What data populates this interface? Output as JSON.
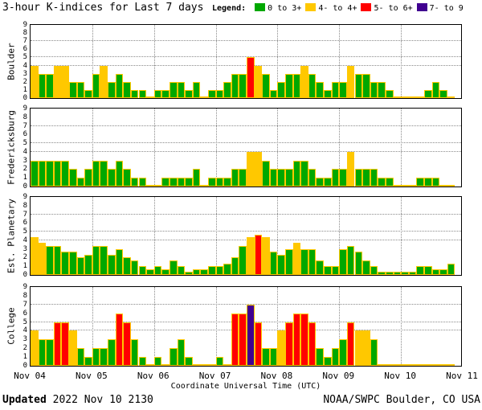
{
  "title": "3-hour K-indices for Last 7 days",
  "legend": {
    "label": "Legend:",
    "items": [
      {
        "label": "0 to 3+",
        "color": "#00A800"
      },
      {
        "label": "4- to 4+",
        "color": "#FFC800"
      },
      {
        "label": "5- to 6+",
        "color": "#FF0000"
      },
      {
        "label": "7- to 9",
        "color": "#400090"
      }
    ]
  },
  "footer": {
    "updated_label": "Updated",
    "updated_value": " 2022 Nov 10 2130",
    "credit": "NOAA/SWPC Boulder, CO USA"
  },
  "chart_data": {
    "type": "bar",
    "title": "3-hour K-indices for Last 7 days",
    "xlabel": "Coordinate Universal Time (UTC)",
    "x_tick_labels": [
      "Nov 04",
      "Nov 05",
      "Nov 06",
      "Nov 07",
      "Nov 08",
      "Nov 09",
      "Nov 10",
      "Nov 11"
    ],
    "ylim": [
      0,
      9
    ],
    "y_tick_labels": [
      "9",
      "8",
      "7",
      "6",
      "5",
      "4",
      "3",
      "2",
      "1",
      "0"
    ],
    "threshold_gridlines": [
      4,
      5,
      7
    ],
    "bars_per_day": 8,
    "days": 7,
    "legend_rule": {
      "green": "0 to 3+",
      "yellow": "4- to 4+",
      "red": "5- to 6+",
      "purple": "7- to 9"
    },
    "colors": {
      "green": "#00A800",
      "yellow": "#FFC800",
      "red": "#FF0000",
      "purple": "#400090",
      "bar_outline": "#FFC800"
    },
    "series": [
      {
        "name": "Boulder",
        "values": [
          4,
          3,
          3,
          4,
          4,
          2,
          2,
          1,
          3,
          4,
          2,
          3,
          2,
          1,
          1,
          0,
          1,
          1,
          2,
          2,
          1,
          2,
          0,
          1,
          1,
          2,
          3,
          3,
          5,
          4,
          3,
          1,
          2,
          3,
          3,
          4,
          3,
          2,
          1,
          2,
          2,
          4,
          3,
          3,
          2,
          2,
          1,
          0,
          0,
          0,
          0,
          1,
          2,
          1,
          0
        ]
      },
      {
        "name": "Fredericksburg",
        "values": [
          3,
          3,
          3,
          3,
          3,
          2,
          1,
          2,
          3,
          3,
          2,
          3,
          2,
          1,
          1,
          0,
          0,
          1,
          1,
          1,
          1,
          2,
          0,
          1,
          1,
          1,
          2,
          2,
          4,
          4,
          3,
          2,
          2,
          2,
          3,
          3,
          2,
          1,
          1,
          2,
          2,
          4,
          2,
          2,
          2,
          1,
          1,
          0,
          0,
          0,
          1,
          1,
          1,
          0,
          0
        ]
      },
      {
        "name": "Est. Planetary",
        "values": [
          4.33,
          3.67,
          3.33,
          3.33,
          2.67,
          2.67,
          2,
          2.33,
          3.33,
          3.33,
          2.33,
          3,
          2,
          1.67,
          1,
          0.67,
          1,
          0.67,
          1.67,
          1,
          0.33,
          0.67,
          0.67,
          1,
          1,
          1.33,
          2,
          3.33,
          4.33,
          4.67,
          4.33,
          2.67,
          2.33,
          3,
          3.67,
          3,
          3,
          1.67,
          1,
          1,
          3,
          3.33,
          2.67,
          1.67,
          1,
          0.33,
          0.33,
          0.33,
          0.33,
          0.33,
          1,
          1,
          0.67,
          0.67,
          1.33
        ]
      },
      {
        "name": "College",
        "values": [
          4,
          3,
          3,
          5,
          5,
          4,
          2,
          1,
          2,
          2,
          3,
          6,
          5,
          3,
          1,
          0,
          1,
          0,
          2,
          3,
          1,
          0,
          0,
          0,
          1,
          0,
          6,
          6,
          7,
          5,
          2,
          2,
          4,
          5,
          6,
          6,
          5,
          2,
          1,
          2,
          3,
          5,
          4,
          4,
          3,
          0,
          0,
          0,
          0,
          0,
          0,
          0,
          0,
          0,
          0
        ]
      }
    ]
  }
}
